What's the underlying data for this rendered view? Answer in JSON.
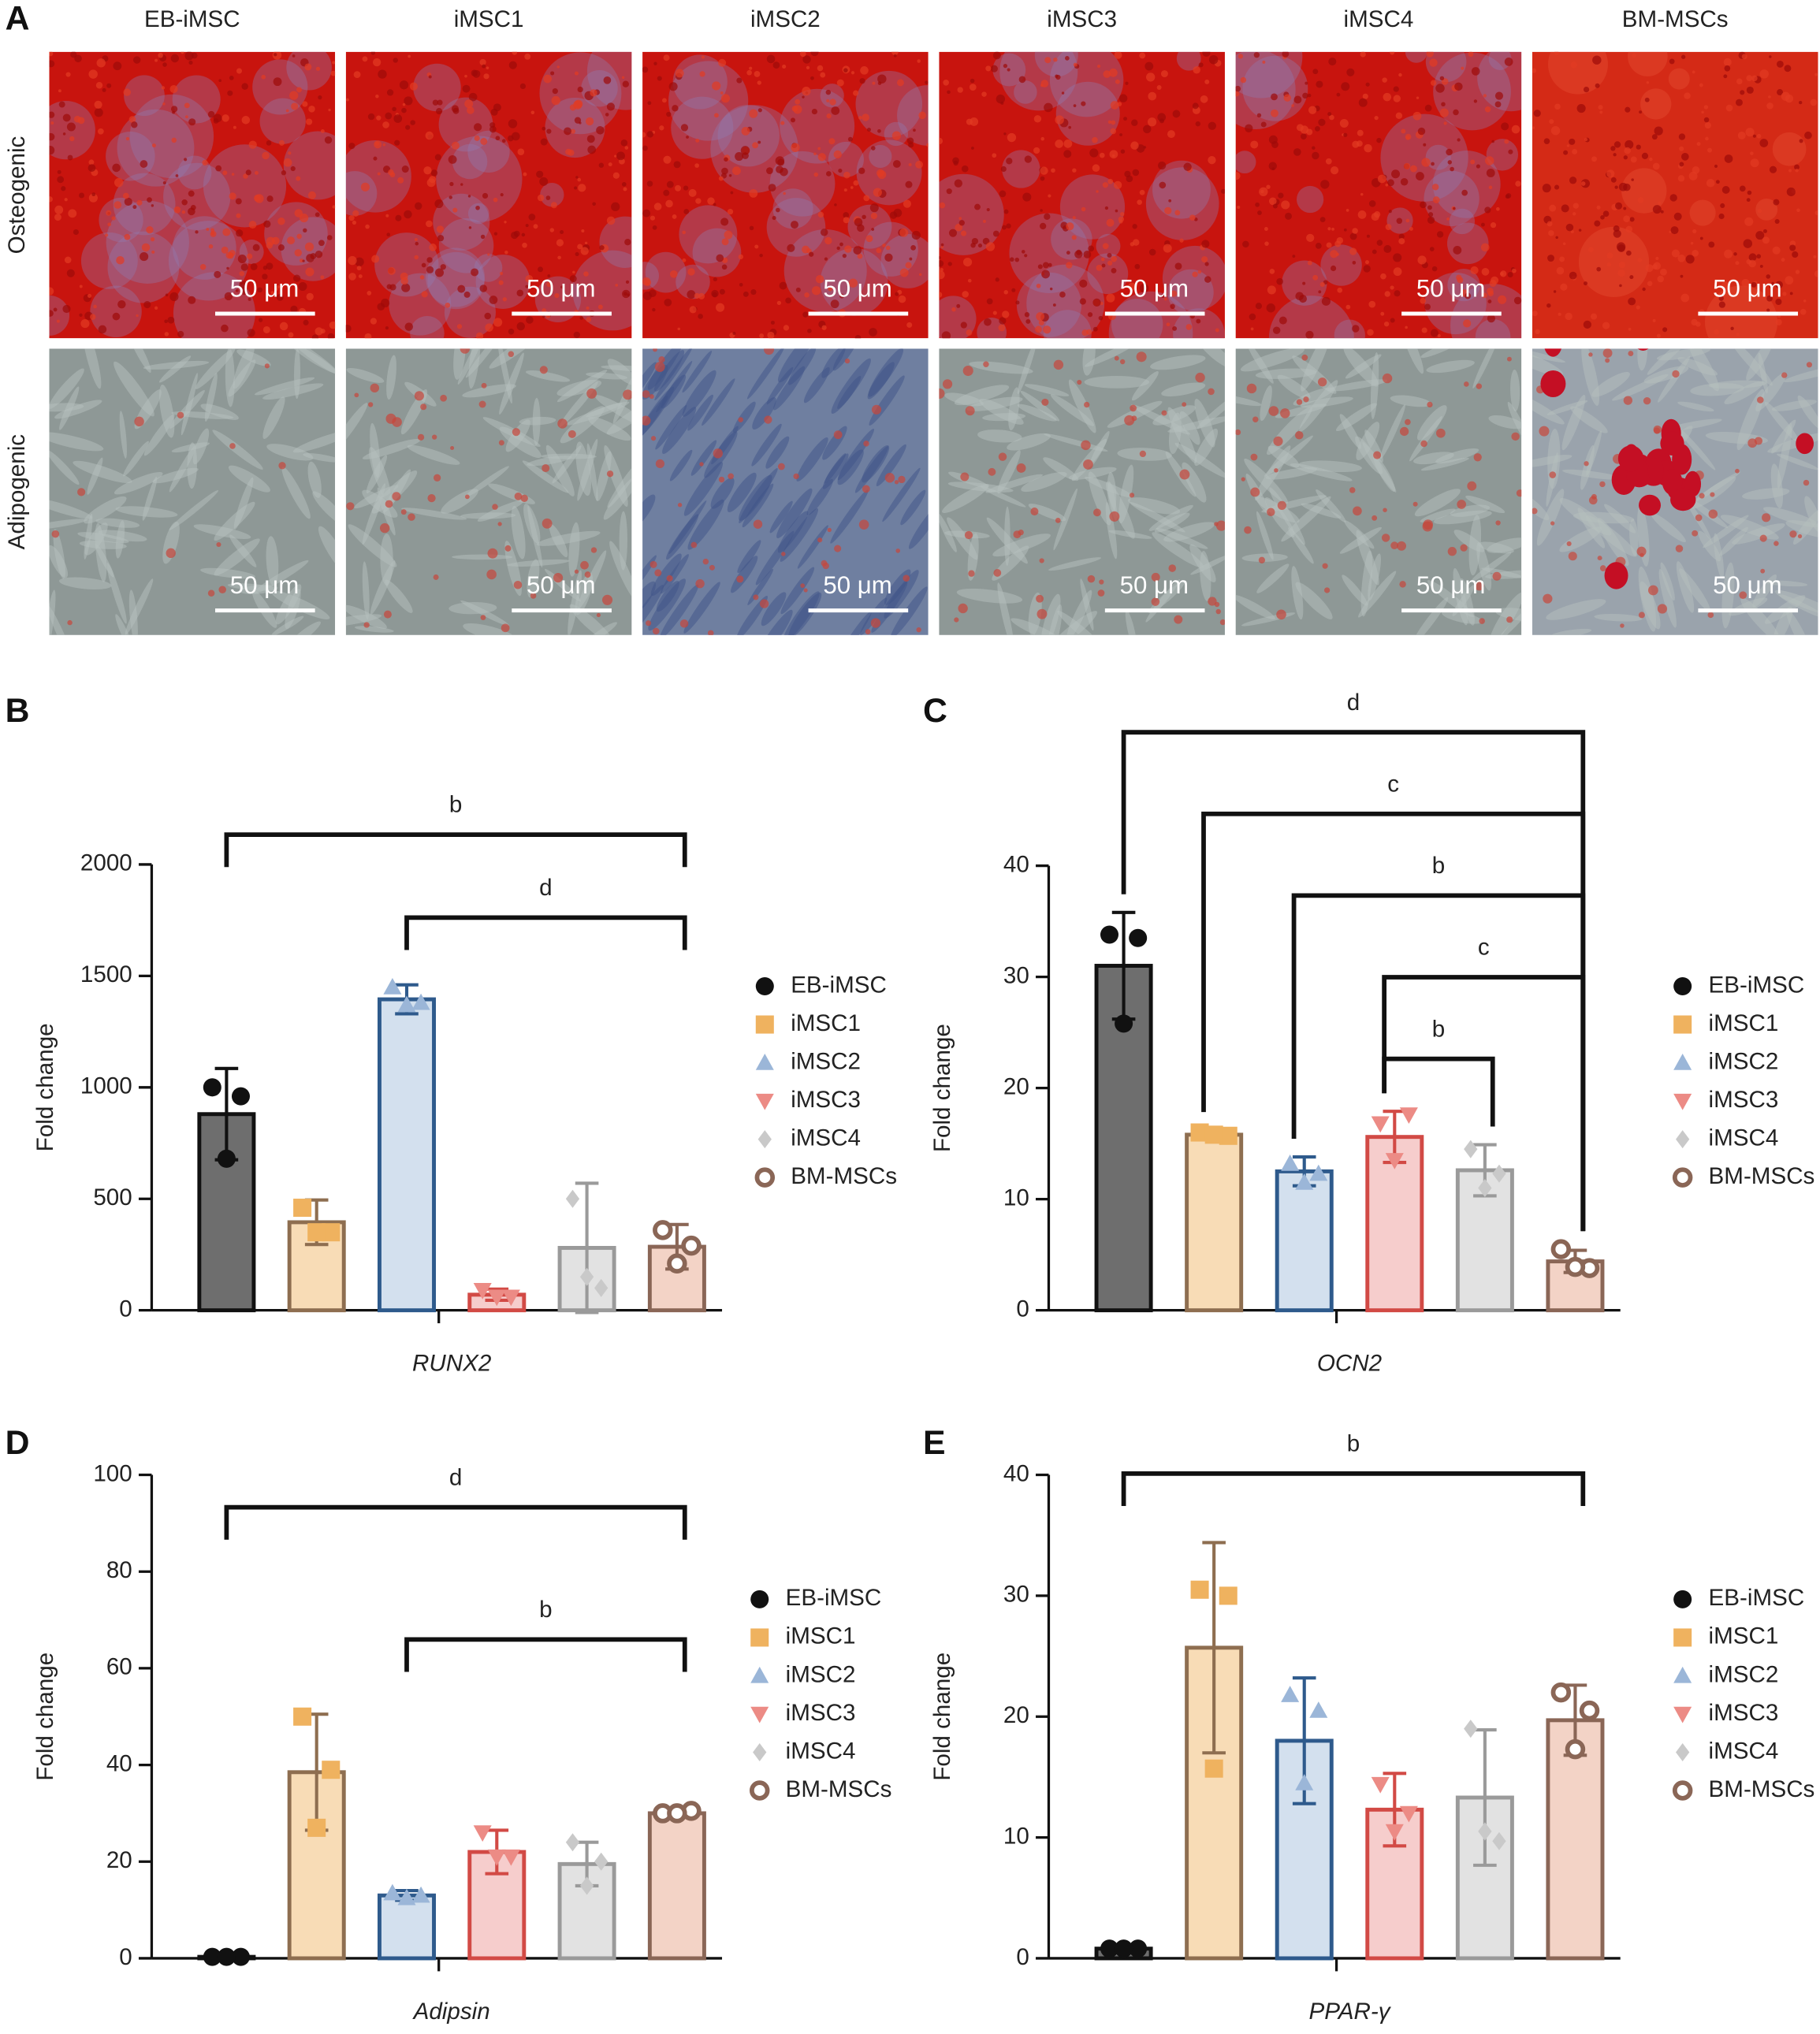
{
  "panel_a": {
    "label": "A",
    "columns": [
      "EB-iMSC",
      "iMSC1",
      "iMSC2",
      "iMSC3",
      "iMSC4",
      "BM-MSCs"
    ],
    "rows": [
      "Osteogenic",
      "Adipogenic"
    ],
    "scale_bar": "50 μm"
  },
  "chart_data": [
    {
      "type": "bar",
      "panel": "B",
      "x_label": "RUNX2",
      "y_label": "Fold change",
      "categories": [
        "EB-iMSC",
        "iMSC1",
        "iMSC2",
        "iMSC3",
        "iMSC4",
        "BM-MSCs"
      ],
      "values": [
        880,
        395,
        1395,
        70,
        280,
        285
      ],
      "errors": [
        205,
        100,
        65,
        25,
        290,
        100
      ],
      "points": [
        [
          1000,
          960,
          680
        ],
        [
          460,
          350,
          350
        ],
        [
          1450,
          1380,
          1370
        ],
        [
          90,
          60,
          60
        ],
        [
          500,
          100,
          150
        ],
        [
          360,
          290,
          210
        ]
      ],
      "ylim": [
        0,
        2000
      ],
      "yticks": [
        0,
        500,
        1000,
        1500,
        2000
      ],
      "brackets": [
        {
          "label": "b",
          "from": "EB-iMSC",
          "to": "BM-MSCs"
        },
        {
          "label": "d",
          "from": "iMSC2",
          "to": "BM-MSCs"
        }
      ],
      "colors": {
        "fill": [
          "#6e6e6e",
          "#f8dcb6",
          "#d3e0ee",
          "#f6cdcc",
          "#e2e2e2",
          "#f3d3c6"
        ],
        "edge": [
          "#111111",
          "#8e6e50",
          "#2e5a8c",
          "#d24a45",
          "#9a9a9a",
          "#8a6656"
        ],
        "point": [
          "#111111",
          "#efb25f",
          "#9bb6d8",
          "#ec8b85",
          "#c9c9c9",
          "#8a6656"
        ]
      },
      "markers": [
        "circle",
        "square",
        "triangle",
        "triangle-down",
        "diamond",
        "ring"
      ]
    },
    {
      "type": "bar",
      "panel": "C",
      "x_label": "OCN2",
      "y_label": "Fold change",
      "categories": [
        "EB-iMSC",
        "iMSC1",
        "iMSC2",
        "iMSC3",
        "iMSC4",
        "BM-MSCs"
      ],
      "values": [
        31,
        15.8,
        12.5,
        15.6,
        12.6,
        4.4
      ],
      "errors": [
        4.8,
        0.4,
        1.3,
        2.3,
        2.3,
        1
      ],
      "points": [
        [
          33.8,
          33.5,
          25.8
        ],
        [
          16,
          15.7,
          15.8
        ],
        [
          13.2,
          12.3,
          11.5
        ],
        [
          16.8,
          17.6,
          13.5
        ],
        [
          14.5,
          12.3,
          11
        ],
        [
          5.5,
          3.8,
          3.9
        ]
      ],
      "ylim": [
        0,
        40
      ],
      "yticks": [
        0,
        10,
        20,
        30,
        40
      ],
      "brackets": [
        {
          "label": "d",
          "from": "EB-iMSC",
          "to": "BM-MSCs"
        },
        {
          "label": "c",
          "from": "iMSC1",
          "to": "BM-MSCs"
        },
        {
          "label": "b",
          "from": "iMSC2",
          "to": "BM-MSCs"
        },
        {
          "label": "c",
          "from": "iMSC3",
          "to": "BM-MSCs"
        },
        {
          "label": "b",
          "from": "iMSC3",
          "to": "iMSC4"
        }
      ],
      "colors": {
        "fill": [
          "#6e6e6e",
          "#f8dcb6",
          "#d3e0ee",
          "#f6cdcc",
          "#e2e2e2",
          "#f3d3c6"
        ],
        "edge": [
          "#111111",
          "#8e6e50",
          "#2e5a8c",
          "#d24a45",
          "#9a9a9a",
          "#8a6656"
        ],
        "point": [
          "#111111",
          "#efb25f",
          "#9bb6d8",
          "#ec8b85",
          "#c9c9c9",
          "#8a6656"
        ]
      },
      "markers": [
        "circle",
        "square",
        "triangle",
        "triangle-down",
        "diamond",
        "ring"
      ]
    },
    {
      "type": "bar",
      "panel": "D",
      "x_label": "Adipsin",
      "y_label": "Fold change",
      "categories": [
        "EB-iMSC",
        "iMSC1",
        "iMSC2",
        "iMSC3",
        "iMSC4",
        "BM-MSCs"
      ],
      "values": [
        0.3,
        38.5,
        13,
        22,
        19.5,
        30
      ],
      "errors": [
        0,
        12,
        1,
        4.5,
        4.5,
        0.5
      ],
      "points": [
        [
          0.3,
          0.3,
          0.3
        ],
        [
          50,
          39,
          27
        ],
        [
          13.5,
          13,
          12.5
        ],
        [
          26,
          21,
          21
        ],
        [
          24,
          20,
          15
        ],
        [
          30,
          30.5,
          30
        ]
      ],
      "ylim": [
        0,
        100
      ],
      "yticks": [
        0,
        20,
        40,
        60,
        80,
        100
      ],
      "brackets": [
        {
          "label": "d",
          "from": "EB-iMSC",
          "to": "BM-MSCs"
        },
        {
          "label": "b",
          "from": "iMSC2",
          "to": "BM-MSCs"
        }
      ],
      "colors": {
        "fill": [
          "#6e6e6e",
          "#f8dcb6",
          "#d3e0ee",
          "#f6cdcc",
          "#e2e2e2",
          "#f3d3c6"
        ],
        "edge": [
          "#111111",
          "#8e6e50",
          "#2e5a8c",
          "#d24a45",
          "#9a9a9a",
          "#8a6656"
        ],
        "point": [
          "#111111",
          "#efb25f",
          "#9bb6d8",
          "#ec8b85",
          "#c9c9c9",
          "#8a6656"
        ]
      },
      "markers": [
        "circle",
        "square",
        "triangle",
        "triangle-down",
        "diamond",
        "ring"
      ]
    },
    {
      "type": "bar",
      "panel": "E",
      "x_label": "PPAR-γ",
      "y_label": "Fold change",
      "categories": [
        "EB-iMSC",
        "iMSC1",
        "iMSC2",
        "iMSC3",
        "iMSC4",
        "BM-MSCs"
      ],
      "values": [
        0.8,
        25.7,
        18,
        12.3,
        13.3,
        19.7
      ],
      "errors": [
        0,
        8.7,
        5.2,
        3,
        5.6,
        2.9
      ],
      "points": [
        [
          0.8,
          0.8,
          0.8
        ],
        [
          30.5,
          30,
          15.7
        ],
        [
          21.8,
          20.5,
          14.5
        ],
        [
          14.4,
          12,
          10.5
        ],
        [
          19,
          9.7,
          10.5
        ],
        [
          22,
          20.5,
          17.3
        ]
      ],
      "ylim": [
        0,
        40
      ],
      "yticks": [
        0,
        10,
        20,
        30,
        40
      ],
      "brackets": [
        {
          "label": "b",
          "from": "EB-iMSC",
          "to": "BM-MSCs"
        }
      ],
      "colors": {
        "fill": [
          "#6e6e6e",
          "#f8dcb6",
          "#d3e0ee",
          "#f6cdcc",
          "#e2e2e2",
          "#f3d3c6"
        ],
        "edge": [
          "#111111",
          "#8e6e50",
          "#2e5a8c",
          "#d24a45",
          "#9a9a9a",
          "#8a6656"
        ],
        "point": [
          "#111111",
          "#efb25f",
          "#9bb6d8",
          "#ec8b85",
          "#c9c9c9",
          "#8a6656"
        ]
      },
      "markers": [
        "circle",
        "square",
        "triangle",
        "triangle-down",
        "diamond",
        "ring"
      ]
    }
  ]
}
